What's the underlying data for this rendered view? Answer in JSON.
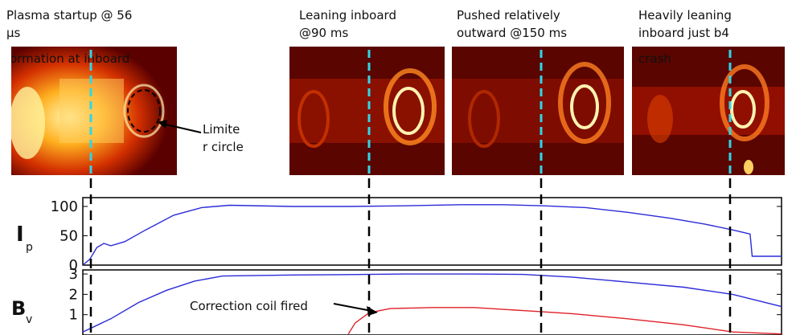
{
  "captions": [
    {
      "id": "startup",
      "text": "Plasma startup @ 56\nμs"
    },
    {
      "id": "leaning_inboard",
      "text": "Leaning inboard\n@90 ms"
    },
    {
      "id": "pushed_outward",
      "text": "Pushed relatively\noutward @150 ms"
    },
    {
      "id": "heavily_leaning",
      "text": "Heavily leaning\ninboard just b4"
    }
  ],
  "frame_overlay_text": [
    {
      "id": "formation",
      "text": "Formation at inboard"
    },
    {
      "id": "crash",
      "text": "crash"
    }
  ],
  "limiter_label": "Limite\nr circle",
  "colors": {
    "cyan_marker": "#2fd6e6",
    "ip_line": "#2b2bd9",
    "bv_line": "#2b2bd9",
    "correction_line": "#e0202a"
  },
  "chart_data": [
    {
      "type": "line",
      "ylabel": "Ip",
      "ylim": [
        0,
        115
      ],
      "yticks": [
        "0",
        "50",
        "100"
      ],
      "xlim": [
        0,
        1
      ],
      "series": [
        {
          "values": [
            [
              0,
              0
            ],
            [
              0.01,
              10
            ],
            [
              0.02,
              30
            ],
            [
              0.03,
              37
            ],
            [
              0.04,
              33
            ],
            [
              0.06,
              40
            ],
            [
              0.09,
              60
            ],
            [
              0.13,
              85
            ],
            [
              0.17,
              98
            ],
            [
              0.21,
              102
            ],
            [
              0.3,
              100
            ],
            [
              0.38,
              100
            ],
            [
              0.46,
              101
            ],
            [
              0.54,
              103
            ],
            [
              0.6,
              103
            ],
            [
              0.66,
              101
            ],
            [
              0.72,
              98
            ],
            [
              0.78,
              90
            ],
            [
              0.84,
              80
            ],
            [
              0.89,
              70
            ],
            [
              0.93,
              60
            ],
            [
              0.955,
              53
            ],
            [
              0.958,
              15
            ],
            [
              1,
              15
            ]
          ]
        }
      ]
    },
    {
      "type": "line",
      "ylabel": "Bv",
      "ylim": [
        0,
        3.2
      ],
      "yticks": [
        "1",
        "2",
        "3"
      ],
      "xlim": [
        0,
        1
      ],
      "annotation": "Correction coil fired",
      "series": [
        {
          "values": [
            [
              0,
              0.15
            ],
            [
              0.04,
              0.8
            ],
            [
              0.08,
              1.6
            ],
            [
              0.12,
              2.2
            ],
            [
              0.16,
              2.65
            ],
            [
              0.2,
              2.9
            ],
            [
              0.3,
              2.95
            ],
            [
              0.38,
              2.97
            ],
            [
              0.46,
              3.0
            ],
            [
              0.56,
              3.0
            ],
            [
              0.63,
              2.98
            ],
            [
              0.7,
              2.85
            ],
            [
              0.78,
              2.6
            ],
            [
              0.86,
              2.35
            ],
            [
              0.93,
              2.0
            ],
            [
              1,
              1.4
            ]
          ]
        },
        {
          "values": [
            [
              0.38,
              0.05
            ],
            [
              0.39,
              0.6
            ],
            [
              0.41,
              1.1
            ],
            [
              0.44,
              1.3
            ],
            [
              0.5,
              1.35
            ],
            [
              0.56,
              1.35
            ],
            [
              0.63,
              1.2
            ],
            [
              0.7,
              1.05
            ],
            [
              0.78,
              0.8
            ],
            [
              0.86,
              0.5
            ],
            [
              0.93,
              0.15
            ],
            [
              1,
              0.05
            ]
          ]
        }
      ]
    }
  ]
}
